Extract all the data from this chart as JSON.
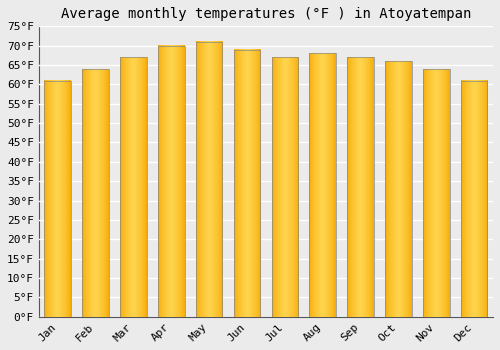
{
  "months": [
    "Jan",
    "Feb",
    "Mar",
    "Apr",
    "May",
    "Jun",
    "Jul",
    "Aug",
    "Sep",
    "Oct",
    "Nov",
    "Dec"
  ],
  "values": [
    61,
    64,
    67,
    70,
    71,
    69,
    67,
    68,
    67,
    66,
    64,
    61
  ],
  "bar_color_left": "#F5A800",
  "bar_color_center": "#FFD54F",
  "bar_color_right": "#F5A800",
  "bar_edge_color": "#888888",
  "title": "Average monthly temperatures (°F ) in Atoyatempan",
  "ylim": [
    0,
    75
  ],
  "yticks": [
    0,
    5,
    10,
    15,
    20,
    25,
    30,
    35,
    40,
    45,
    50,
    55,
    60,
    65,
    70,
    75
  ],
  "ytick_labels": [
    "0°F",
    "5°F",
    "10°F",
    "15°F",
    "20°F",
    "25°F",
    "30°F",
    "35°F",
    "40°F",
    "45°F",
    "50°F",
    "55°F",
    "60°F",
    "65°F",
    "70°F",
    "75°F"
  ],
  "background_color": "#EBEBEB",
  "grid_color": "#FFFFFF",
  "title_fontsize": 10,
  "tick_fontsize": 8
}
